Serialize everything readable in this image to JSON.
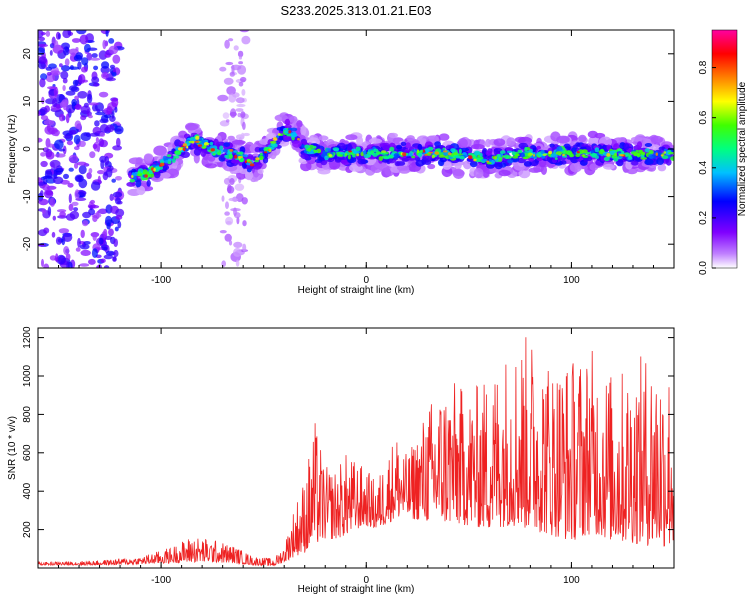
{
  "figure_title": "S233.2025.313.01.21.E03",
  "chart_data": [
    {
      "type": "heatmap",
      "title": "",
      "xlabel": "Height of straight line (km)",
      "ylabel": "Frequency (Hz)",
      "xlim": [
        -160,
        150
      ],
      "ylim": [
        -25,
        25
      ],
      "xticks": [
        -100,
        0,
        100
      ],
      "yticks": [
        -20,
        -10,
        0,
        10,
        20
      ],
      "grid": false,
      "colorbar": {
        "label": "Normalized spectral amplitude",
        "range": [
          0,
          0.95
        ],
        "ticks": [
          0.0,
          0.2,
          0.4,
          0.6,
          0.8
        ],
        "colormap": [
          "#ffffff",
          "#c080ff",
          "#8000ff",
          "#0000ff",
          "#00c0ff",
          "#00ff80",
          "#40ff00",
          "#ffff00",
          "#ff8000",
          "#ff0000",
          "#ff00a0"
        ]
      },
      "ridge": {
        "description": "main spectral ridge (frequency vs height)",
        "x": [
          -115,
          -105,
          -95,
          -85,
          -75,
          -65,
          -55,
          -45,
          -40,
          -35,
          -30,
          -20,
          -10,
          0,
          20,
          40,
          60,
          80,
          100,
          120,
          140,
          150
        ],
        "y": [
          -6,
          -5,
          -2,
          2,
          0,
          -1,
          -3,
          1,
          4,
          3,
          0,
          -1,
          -1,
          -1,
          -1,
          -1,
          -2,
          -1,
          -1,
          -1,
          -1,
          -1
        ],
        "peak_amplitude": 0.9
      },
      "noise_regions": [
        {
          "x_range": [
            -160,
            -120
          ],
          "y_range": [
            -25,
            25
          ],
          "amplitude": 0.3
        },
        {
          "x_range": [
            -70,
            -58
          ],
          "y_range": [
            -25,
            25
          ],
          "amplitude": 0.1
        }
      ]
    },
    {
      "type": "line",
      "title": "",
      "xlabel": "Height of straight line (km)",
      "ylabel": "SNR (10 * v/v)",
      "xlim": [
        -160,
        150
      ],
      "ylim": [
        0,
        1250
      ],
      "xticks": [
        -100,
        0,
        100
      ],
      "yticks": [
        200,
        400,
        600,
        800,
        1000,
        1200
      ],
      "grid": false,
      "series": [
        {
          "name": "SNR",
          "color": "#ee2222",
          "envelope_x": [
            -160,
            -130,
            -110,
            -95,
            -85,
            -75,
            -65,
            -55,
            -45,
            -40,
            -35,
            -30,
            -25,
            -20,
            -15,
            -10,
            -5,
            0,
            5,
            10,
            15,
            20,
            30,
            40,
            50,
            60,
            70,
            80,
            90,
            100,
            110,
            120,
            130,
            140,
            150
          ],
          "envelope_max": [
            30,
            40,
            60,
            110,
            170,
            150,
            120,
            60,
            50,
            120,
            330,
            480,
            770,
            530,
            520,
            600,
            560,
            520,
            450,
            600,
            720,
            580,
            860,
            1000,
            920,
            1020,
            1180,
            1230,
            1100,
            1110,
            1150,
            1020,
            1070,
            1170,
            1060
          ],
          "envelope_min": [
            15,
            15,
            20,
            25,
            30,
            30,
            25,
            15,
            10,
            30,
            60,
            80,
            120,
            150,
            150,
            170,
            200,
            220,
            200,
            230,
            260,
            260,
            240,
            230,
            220,
            200,
            220,
            200,
            170,
            140,
            180,
            140,
            130,
            110,
            110
          ]
        }
      ]
    }
  ]
}
